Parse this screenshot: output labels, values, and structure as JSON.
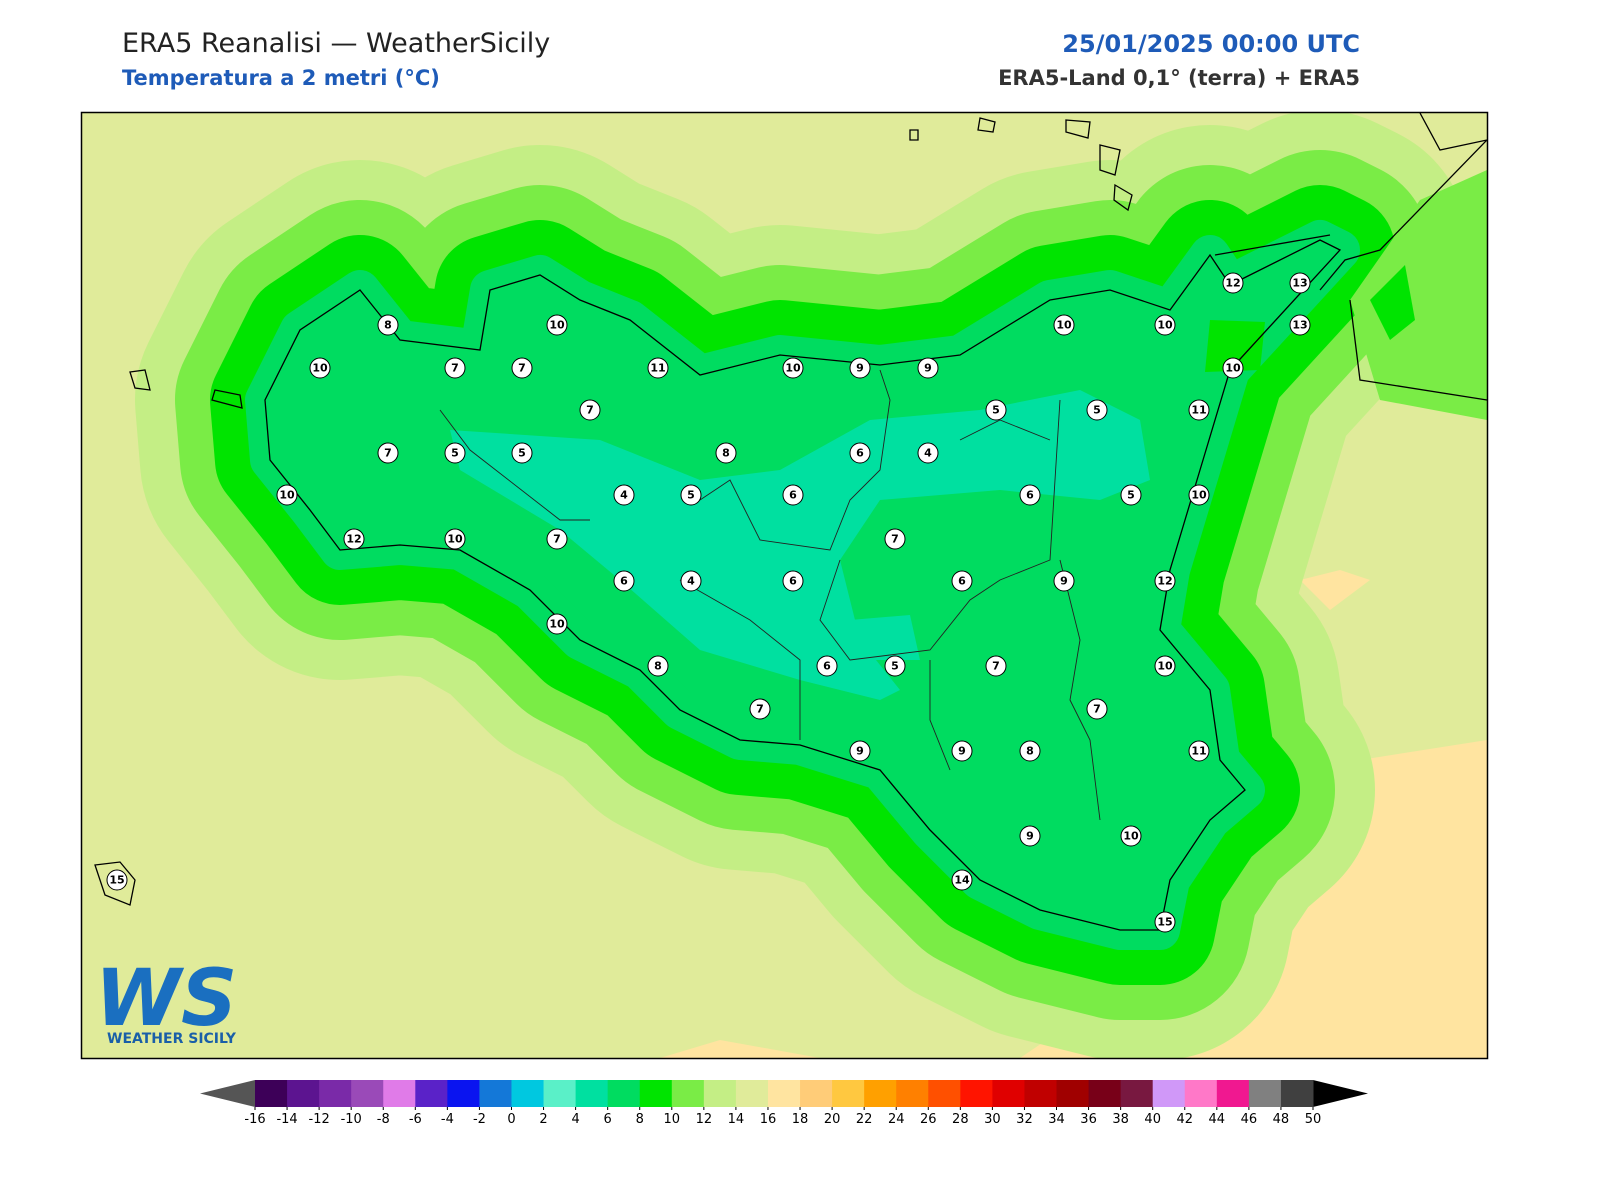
{
  "header": {
    "title": "ERA5 Reanalisi — WeatherSicily",
    "subtitle": "Temperatura a 2 metri (°C)",
    "datetime": "25/01/2025 00:00 UTC",
    "source": "ERA5-Land 0,1° (terra) + ERA5"
  },
  "station_values": [
    8,
    10,
    10,
    7,
    7,
    11,
    10,
    9,
    9,
    7,
    7,
    5,
    5,
    8,
    6,
    4,
    5,
    5,
    11,
    12,
    13,
    13,
    10,
    10,
    10,
    10,
    4,
    5,
    6,
    6,
    5,
    10,
    12,
    10,
    7,
    7,
    6,
    4,
    6,
    6,
    9,
    12,
    10,
    8,
    6,
    5,
    7,
    10,
    7,
    7,
    9,
    9,
    8,
    11,
    9,
    10,
    14,
    15,
    15
  ],
  "colorbar": {
    "ticks": [
      -16,
      -14,
      -12,
      -10,
      -8,
      -6,
      -4,
      -2,
      0,
      2,
      4,
      6,
      8,
      10,
      12,
      14,
      16,
      18,
      20,
      22,
      24,
      26,
      28,
      30,
      32,
      34,
      36,
      38,
      40,
      42,
      44,
      46,
      48,
      50
    ],
    "colors": [
      "#3d0058",
      "#5c1490",
      "#7a2aa8",
      "#9a4ab8",
      "#e07be8",
      "#5a22c8",
      "#0a14f0",
      "#1478d8",
      "#00c8e0",
      "#5af0c8",
      "#00e0a0",
      "#00dc60",
      "#00e400",
      "#7aec46",
      "#c4ee85",
      "#e0eb9a",
      "#ffe4a0",
      "#ffcc78",
      "#ffc840",
      "#ffa000",
      "#ff8000",
      "#ff5000",
      "#ff1400",
      "#e00000",
      "#c00000",
      "#a00000",
      "#780018",
      "#781840",
      "#d098f8",
      "#ff78c8",
      "#f01890",
      "#808080",
      "#404040"
    ],
    "under_color": "#555555",
    "over_color": "#000000"
  },
  "logo": {
    "mark": "WS",
    "name": "WEATHER SICILY"
  }
}
